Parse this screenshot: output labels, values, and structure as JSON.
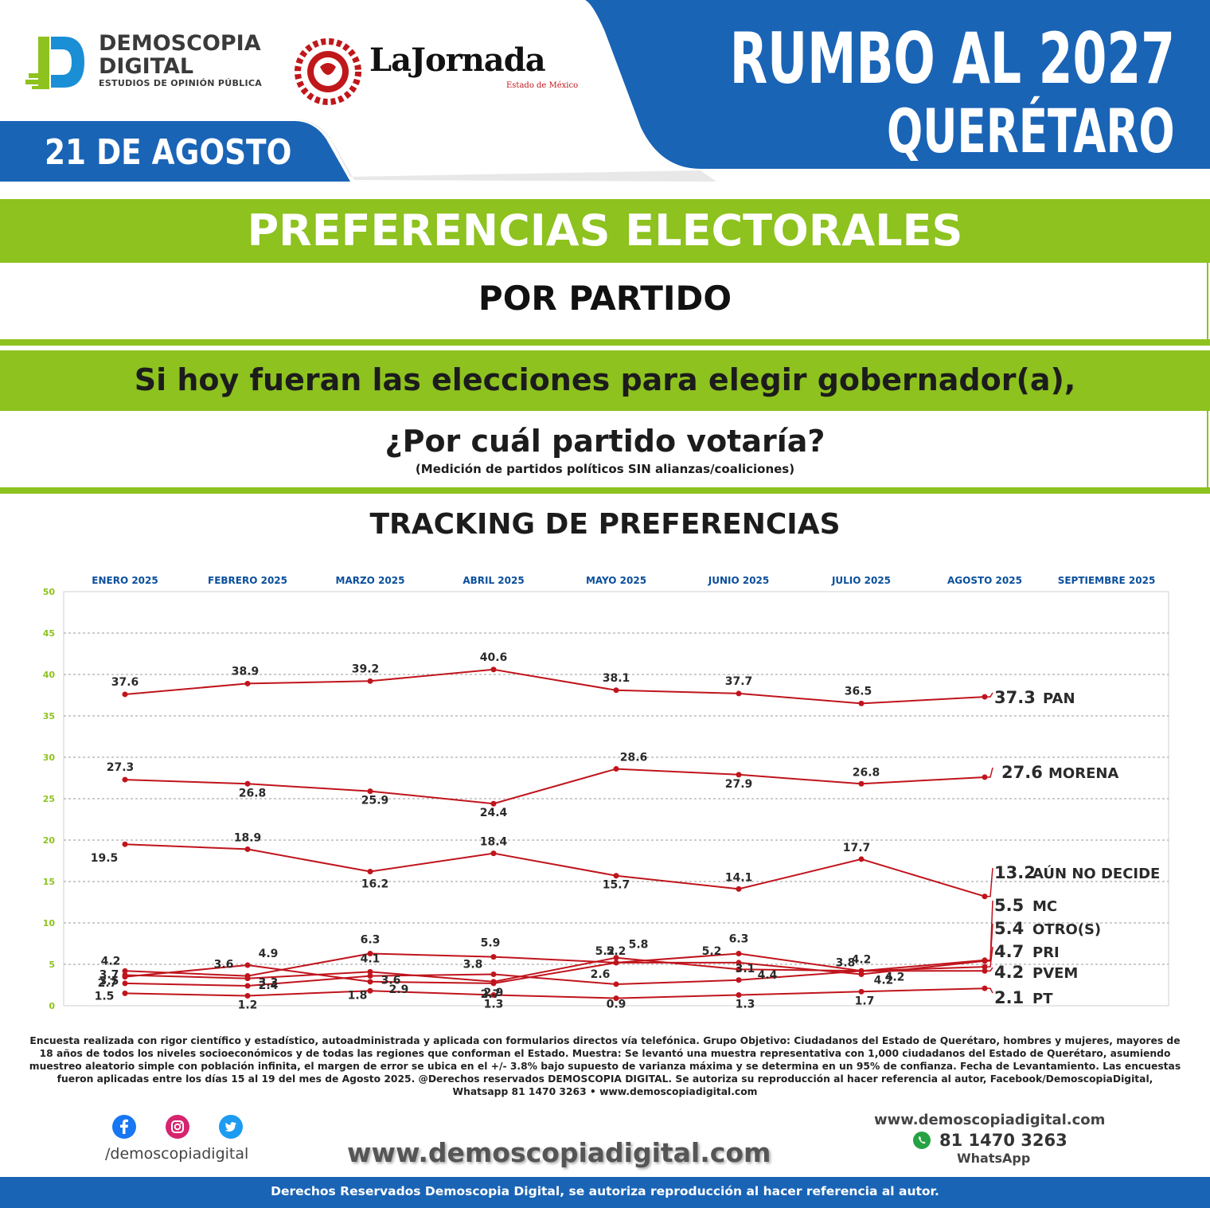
{
  "brand": {
    "name_line1": "DEMOSCOPIA",
    "name_line2": "DIGITAL",
    "tagline": "ESTUDIOS DE OPINIÓN PÚBLICA",
    "partner_name": "LaJornada",
    "partner_sub": "Estado de México"
  },
  "header": {
    "date": "21 DE AGOSTO",
    "title_line1": "RUMBO AL 2027",
    "title_line2": "QUERÉTARO"
  },
  "banners": {
    "main": "PREFERENCIAS ELECTORALES",
    "sub": "POR PARTIDO",
    "question_line1": "Si hoy fueran las elecciones para elegir gobernador(a),",
    "question_line2": "¿Por cuál partido votaría?",
    "question_note": "(Medición de partidos políticos SIN alianzas/coaliciones)",
    "chart_heading": "TRACKING DE PREFERENCIAS"
  },
  "chart_data": {
    "type": "line",
    "title": "TRACKING DE PREFERENCIAS",
    "months": [
      "ENERO 2025",
      "FEBRERO 2025",
      "MARZO 2025",
      "ABRIL 2025",
      "MAYO 2025",
      "JUNIO 2025",
      "JULIO 2025",
      "AGOSTO 2025",
      "SEPTIEMBRE 2025"
    ],
    "y_ticks": [
      "0",
      "5",
      "10",
      "15",
      "20",
      "25",
      "30",
      "35",
      "40",
      "45",
      "50"
    ],
    "ylim": [
      0,
      50
    ],
    "grid": true,
    "line_color": "#c0141c",
    "series": [
      {
        "name": "PAN",
        "values": [
          37.6,
          38.9,
          39.2,
          40.6,
          38.1,
          37.7,
          36.5,
          37.3
        ]
      },
      {
        "name": "MORENA",
        "values": [
          27.3,
          26.8,
          25.9,
          24.4,
          28.6,
          27.9,
          26.8,
          27.6
        ]
      },
      {
        "name": "AÚN NO DECIDE",
        "values": [
          19.5,
          18.9,
          16.2,
          18.4,
          15.7,
          14.1,
          17.7,
          13.2
        ]
      },
      {
        "name": "MC",
        "values": [
          3.7,
          3.3,
          4.1,
          2.9,
          5.8,
          4.4,
          4.2,
          5.5
        ]
      },
      {
        "name": "OTRO(S)",
        "values": [
          3.5,
          4.9,
          2.9,
          2.7,
          5.2,
          5.2,
          3.8,
          5.4
        ]
      },
      {
        "name": "PRI",
        "values": [
          4.2,
          3.6,
          6.3,
          5.9,
          5.2,
          6.3,
          4.2,
          4.7
        ]
      },
      {
        "name": "PVEM",
        "values": [
          2.7,
          2.4,
          3.6,
          3.8,
          2.6,
          3.1,
          4.2,
          4.2
        ]
      },
      {
        "name": "PT",
        "values": [
          1.5,
          1.2,
          1.8,
          1.3,
          0.9,
          1.3,
          1.7,
          2.1
        ]
      }
    ],
    "end_labels": [
      {
        "value": "37.3",
        "name": "PAN"
      },
      {
        "value": "27.6",
        "name": "MORENA"
      },
      {
        "value": "13.2",
        "name": "AÚN NO DECIDE"
      },
      {
        "value": "5.5",
        "name": "MC"
      },
      {
        "value": "5.4",
        "name": "OTRO(S)"
      },
      {
        "value": "4.7",
        "name": "PRI"
      },
      {
        "value": "4.2",
        "name": "PVEM"
      },
      {
        "value": "2.1",
        "name": "PT"
      }
    ]
  },
  "footer": {
    "methodology": "Encuesta realizada con rigor científico y estadístico, autoadministrada y aplicada con formularios directos vía telefónica. Grupo Objetivo: Ciudadanos del Estado de Querétaro, hombres y mujeres, mayores de 18 años de todos los niveles socioeconómicos y de todas las regiones que conforman el Estado. Muestra: Se levantó una muestra representativa con 1,000 ciudadanos del Estado de Querétaro, asumiendo muestreo aleatorio simple con población infinita, el margen de error se ubica en el +/- 3.8% bajo supuesto de varianza máxima y se determina en un 95% de confianza. Fecha de Levantamiento. Las encuestas fueron aplicadas entre los días 15 al 19 del mes de Agosto 2025. @Derechos reservados DEMOSCOPIA DIGITAL. Se autoriza su reproducción al hacer referencia al autor, Facebook/DemoscopiaDigital, Whatsapp 81 1470 3263 • www.demoscopiadigital.com",
    "handle": "/demoscopiadigital",
    "website_big": "www.demoscopiadigital.com",
    "website_small": "www.demoscopiadigital.com",
    "phone": "81 1470 3263",
    "whatsapp_label": "WhatsApp",
    "copyright": "Derechos Reservados Demoscopia Digital, se autoriza reproducción al hacer referencia al autor.",
    "social_icons": [
      "facebook-icon",
      "instagram-icon",
      "twitter-icon"
    ]
  },
  "colors": {
    "blue": "#1a64b6",
    "green": "#8dc21f",
    "line": "#c0141c"
  }
}
